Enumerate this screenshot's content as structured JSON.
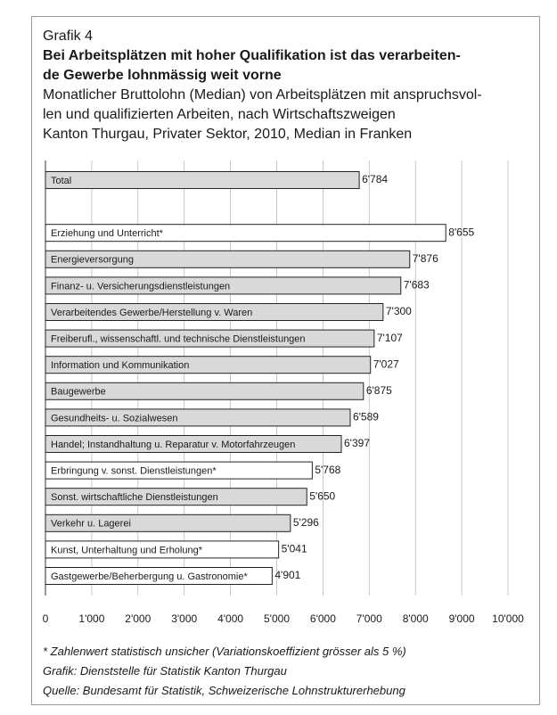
{
  "chart_data": {
    "type": "bar",
    "orientation": "horizontal",
    "label": "Grafik 4",
    "title": "Bei Arbeitsplätzen mit hoher Qualifikation ist das verarbeiten-de Gewerbe lohnmässig weit vorne",
    "title_lines": [
      "Bei Arbeitsplätzen mit hoher Qualifikation ist das verarbeiten-",
      "de Gewerbe lohnmässig weit vorne"
    ],
    "subtitle_lines": [
      "Monatlicher Bruttolohn (Median) von Arbeitsplätzen mit anspruchsvol-",
      "len und qualifizierten Arbeiten, nach Wirtschaftszweigen",
      "Kanton Thurgau, Privater Sektor, 2010, Median in Franken"
    ],
    "categories": [
      "Total",
      null,
      "Erziehung und Unterricht*",
      "Energieversorgung",
      "Finanz- u. Versicherungsdienstleistungen",
      "Verarbeitendes Gewerbe/Herstellung v. Waren",
      "Freiberufl., wissenschaftl. und technische Dienstleistungen",
      "Information und Kommunikation",
      "Baugewerbe",
      "Gesundheits- u. Sozialwesen",
      "Handel; Instandhaltung u. Reparatur v. Motorfahrzeugen",
      "Erbringung v. sonst. Dienstleistungen*",
      "Sonst. wirtschaftliche Dienstleistungen",
      "Verkehr u. Lagerei",
      "Kunst, Unterhaltung und Erholung*",
      "Gastgewerbe/Beherbergung u. Gastronomie*"
    ],
    "values": [
      6784,
      null,
      8655,
      7876,
      7683,
      7300,
      7107,
      7027,
      6875,
      6589,
      6397,
      5768,
      5650,
      5296,
      5041,
      4901
    ],
    "value_labels": [
      "6'784",
      null,
      "8'655",
      "7'876",
      "7'683",
      "7'300",
      "7'107",
      "7'027",
      "6'875",
      "6'589",
      "6'397",
      "5'768",
      "5'650",
      "5'296",
      "5'041",
      "4'901"
    ],
    "colors": [
      "#d9d9d9",
      null,
      "#ffffff",
      "#d9d9d9",
      "#d9d9d9",
      "#d9d9d9",
      "#d9d9d9",
      "#d9d9d9",
      "#d9d9d9",
      "#d9d9d9",
      "#d9d9d9",
      "#ffffff",
      "#d9d9d9",
      "#d9d9d9",
      "#ffffff",
      "#ffffff"
    ],
    "xlim": [
      0,
      10000
    ],
    "xticks": [
      0,
      {
        "value": 1000,
        "label": "1'000"
      },
      {
        "value": 2000,
        "label": "2'000"
      },
      {
        "value": 3000,
        "label": "3'000"
      },
      {
        "value": 4000,
        "label": "4'000"
      },
      {
        "value": 5000,
        "label": "5'000"
      },
      {
        "value": 6000,
        "label": "6'000"
      },
      {
        "value": 7000,
        "label": "7'000"
      },
      {
        "value": 8000,
        "label": "8'000"
      },
      {
        "value": 9000,
        "label": "9'000"
      },
      {
        "value": 10000,
        "label": "10'000"
      }
    ],
    "grid": true,
    "footnotes": [
      "* Zahlenwert statistisch unsicher (Variationskoeffizient grösser als 5 %)",
      "Grafik: Dienststelle für Statistik Kanton Thurgau",
      "Quelle: Bundesamt für Statistik, Schweizerische Lohnstrukturerhebung"
    ]
  }
}
